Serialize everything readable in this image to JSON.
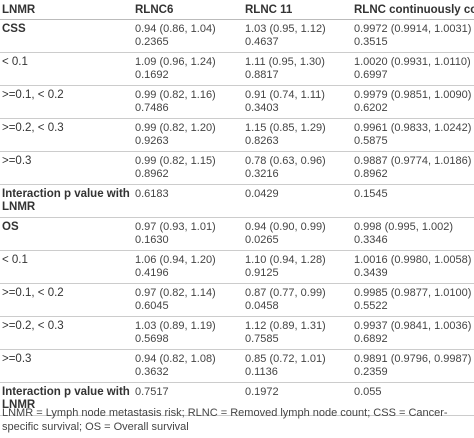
{
  "table": {
    "header": [
      "LNMR",
      "RLNC6",
      "RLNC 11",
      "RLNC continuously coded"
    ],
    "rows": [
      {
        "label": "CSS",
        "cells": [
          [
            "0.94 (0.86, 1.04)",
            "0.2365"
          ],
          [
            "1.03 (0.95, 1.12)",
            "0.4637"
          ],
          [
            "0.9972 (0.9914, 1.0031)",
            "0.3515"
          ]
        ]
      },
      {
        "label": "< 0.1",
        "cells": [
          [
            "1.09 (0.96, 1.24)",
            "0.1692"
          ],
          [
            "1.11 (0.95, 1.30)",
            "0.8817"
          ],
          [
            "1.0020 (0.9931, 1.0110)",
            "0.6997"
          ]
        ]
      },
      {
        "label": ">=0.1, < 0.2",
        "cells": [
          [
            "0.99 (0.82, 1.16)",
            "0.7486"
          ],
          [
            "0.91 (0.74, 1.11)",
            "0.3403"
          ],
          [
            "0.9979 (0.9851, 1.0090)",
            "0.6202"
          ]
        ]
      },
      {
        "label": ">=0.2, < 0.3",
        "cells": [
          [
            "0.99 (0.82, 1.20)",
            "0.9263"
          ],
          [
            "1.15 (0.85, 1.29)",
            "0.8263"
          ],
          [
            "0.9961 (0.9833, 1.0242)",
            "0.5875"
          ]
        ]
      },
      {
        "label": ">=0.3",
        "cells": [
          [
            "0.99 (0.82, 1.15)",
            "0.8962"
          ],
          [
            "0.78 (0.63, 0.96)",
            "0.3216"
          ],
          [
            "0.9887 (0.9774, 1.0186)",
            "0.8962"
          ]
        ]
      },
      {
        "label": "Interaction p value with LNMR",
        "cells": [
          [
            "0.6183"
          ],
          [
            "0.0429"
          ],
          [
            "0.1545"
          ]
        ]
      },
      {
        "label": "OS",
        "cells": [
          [
            "0.97 (0.93, 1.01)",
            "0.1630"
          ],
          [
            "0.94 (0.90, 0.99)",
            "0.0265"
          ],
          [
            "0.998 (0.995, 1.002)",
            "0.3346"
          ]
        ]
      },
      {
        "label": "< 0.1",
        "cells": [
          [
            "1.06 (0.94, 1.20)",
            "0.4196"
          ],
          [
            "1.10 (0.94, 1.28)",
            "0.9125"
          ],
          [
            "1.0016 (0.9980, 1.0058)",
            "0.3439"
          ]
        ]
      },
      {
        "label": ">=0.1, < 0.2",
        "cells": [
          [
            "0.97 (0.82, 1.14)",
            "0.6045"
          ],
          [
            "0.87 (0.77, 0.99)",
            "0.0458"
          ],
          [
            "0.9985 (0.9877, 1.0100)",
            "0.5522"
          ]
        ]
      },
      {
        "label": ">=0.2, < 0.3",
        "cells": [
          [
            "1.03 (0.89, 1.19)",
            "0.5698"
          ],
          [
            "1.12 (0.89, 1.31)",
            "0.7585"
          ],
          [
            "0.9937 (0.9841, 1.0036)",
            "0.6892"
          ]
        ]
      },
      {
        "label": ">=0.3",
        "cells": [
          [
            "0.94 (0.82, 1.08)",
            "0.3632"
          ],
          [
            "0.85 (0.72, 1.01)",
            "0.1136"
          ],
          [
            "0.9891 (0.9796, 0.9987)",
            "0.2359"
          ]
        ]
      },
      {
        "label": "Interaction p value with LNMR",
        "cells": [
          [
            "0.7517"
          ],
          [
            "0.1972"
          ],
          [
            "0.055"
          ]
        ]
      }
    ]
  },
  "footnote": "LNMR = Lymph node metastasis risk; RLNC = Removed lymph node count; CSS = Cancer-specific survival; OS = Overall survival"
}
